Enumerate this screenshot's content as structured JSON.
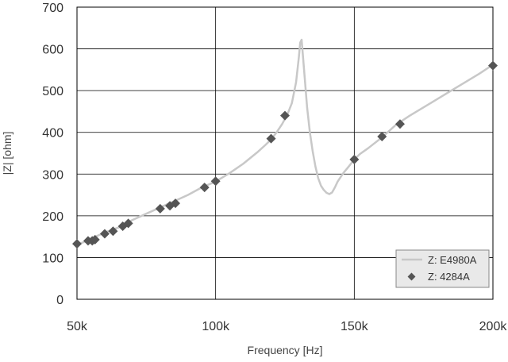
{
  "chart_data": {
    "type": "line",
    "title": "",
    "xlabel": "Frequency [Hz]",
    "ylabel": "|Z| [ohm]",
    "xlim": [
      50000,
      200000
    ],
    "ylim": [
      0,
      700
    ],
    "x_ticks": [
      50000,
      100000,
      150000,
      200000
    ],
    "x_tick_labels": [
      "50k",
      "100k",
      "150k",
      "200k"
    ],
    "y_ticks": [
      0,
      100,
      200,
      300,
      400,
      500,
      600,
      700
    ],
    "y_tick_labels": [
      "0",
      "100",
      "200",
      "300",
      "400",
      "500",
      "600",
      "700"
    ],
    "grid": true,
    "legend_position": "bottom-right",
    "series": [
      {
        "name": "Z: E4980A",
        "kind": "line",
        "color": "#c8c8c8",
        "x": [
          50000,
          55000,
          60000,
          65000,
          70000,
          75000,
          80000,
          85000,
          90000,
          95000,
          100000,
          105000,
          110000,
          115000,
          118000,
          120000,
          122000,
          124000,
          126000,
          127500,
          129000,
          130000,
          130500,
          131000,
          132000,
          133000,
          134000,
          135000,
          136000,
          137000,
          138000,
          139000,
          140000,
          141000,
          142000,
          143000,
          144000,
          146000,
          148000,
          150000,
          152000,
          155000,
          160000,
          165000,
          170000,
          175000,
          180000,
          185000,
          190000,
          195000,
          200000
        ],
        "y": [
          130,
          145,
          160,
          172,
          190,
          205,
          220,
          235,
          250,
          268,
          282,
          302,
          325,
          352,
          370,
          383,
          400,
          420,
          445,
          470,
          520,
          580,
          615,
          622,
          540,
          460,
          400,
          355,
          318,
          290,
          272,
          262,
          255,
          252,
          256,
          268,
          282,
          302,
          318,
          335,
          348,
          362,
          388,
          418,
          440,
          460,
          480,
          500,
          520,
          540,
          562
        ]
      },
      {
        "name": "Z: 4284A",
        "kind": "scatter",
        "color": "#555555",
        "x": [
          50000,
          54000,
          55500,
          56500,
          60000,
          63000,
          66500,
          68500,
          80000,
          83500,
          85500,
          96000,
          100000,
          120000,
          125000,
          150000,
          160000,
          166500,
          200000
        ],
        "y": [
          133,
          140,
          140,
          143,
          157,
          163,
          175,
          182,
          217,
          224,
          230,
          268,
          283,
          385,
          440,
          335,
          390,
          420,
          560
        ]
      }
    ]
  }
}
